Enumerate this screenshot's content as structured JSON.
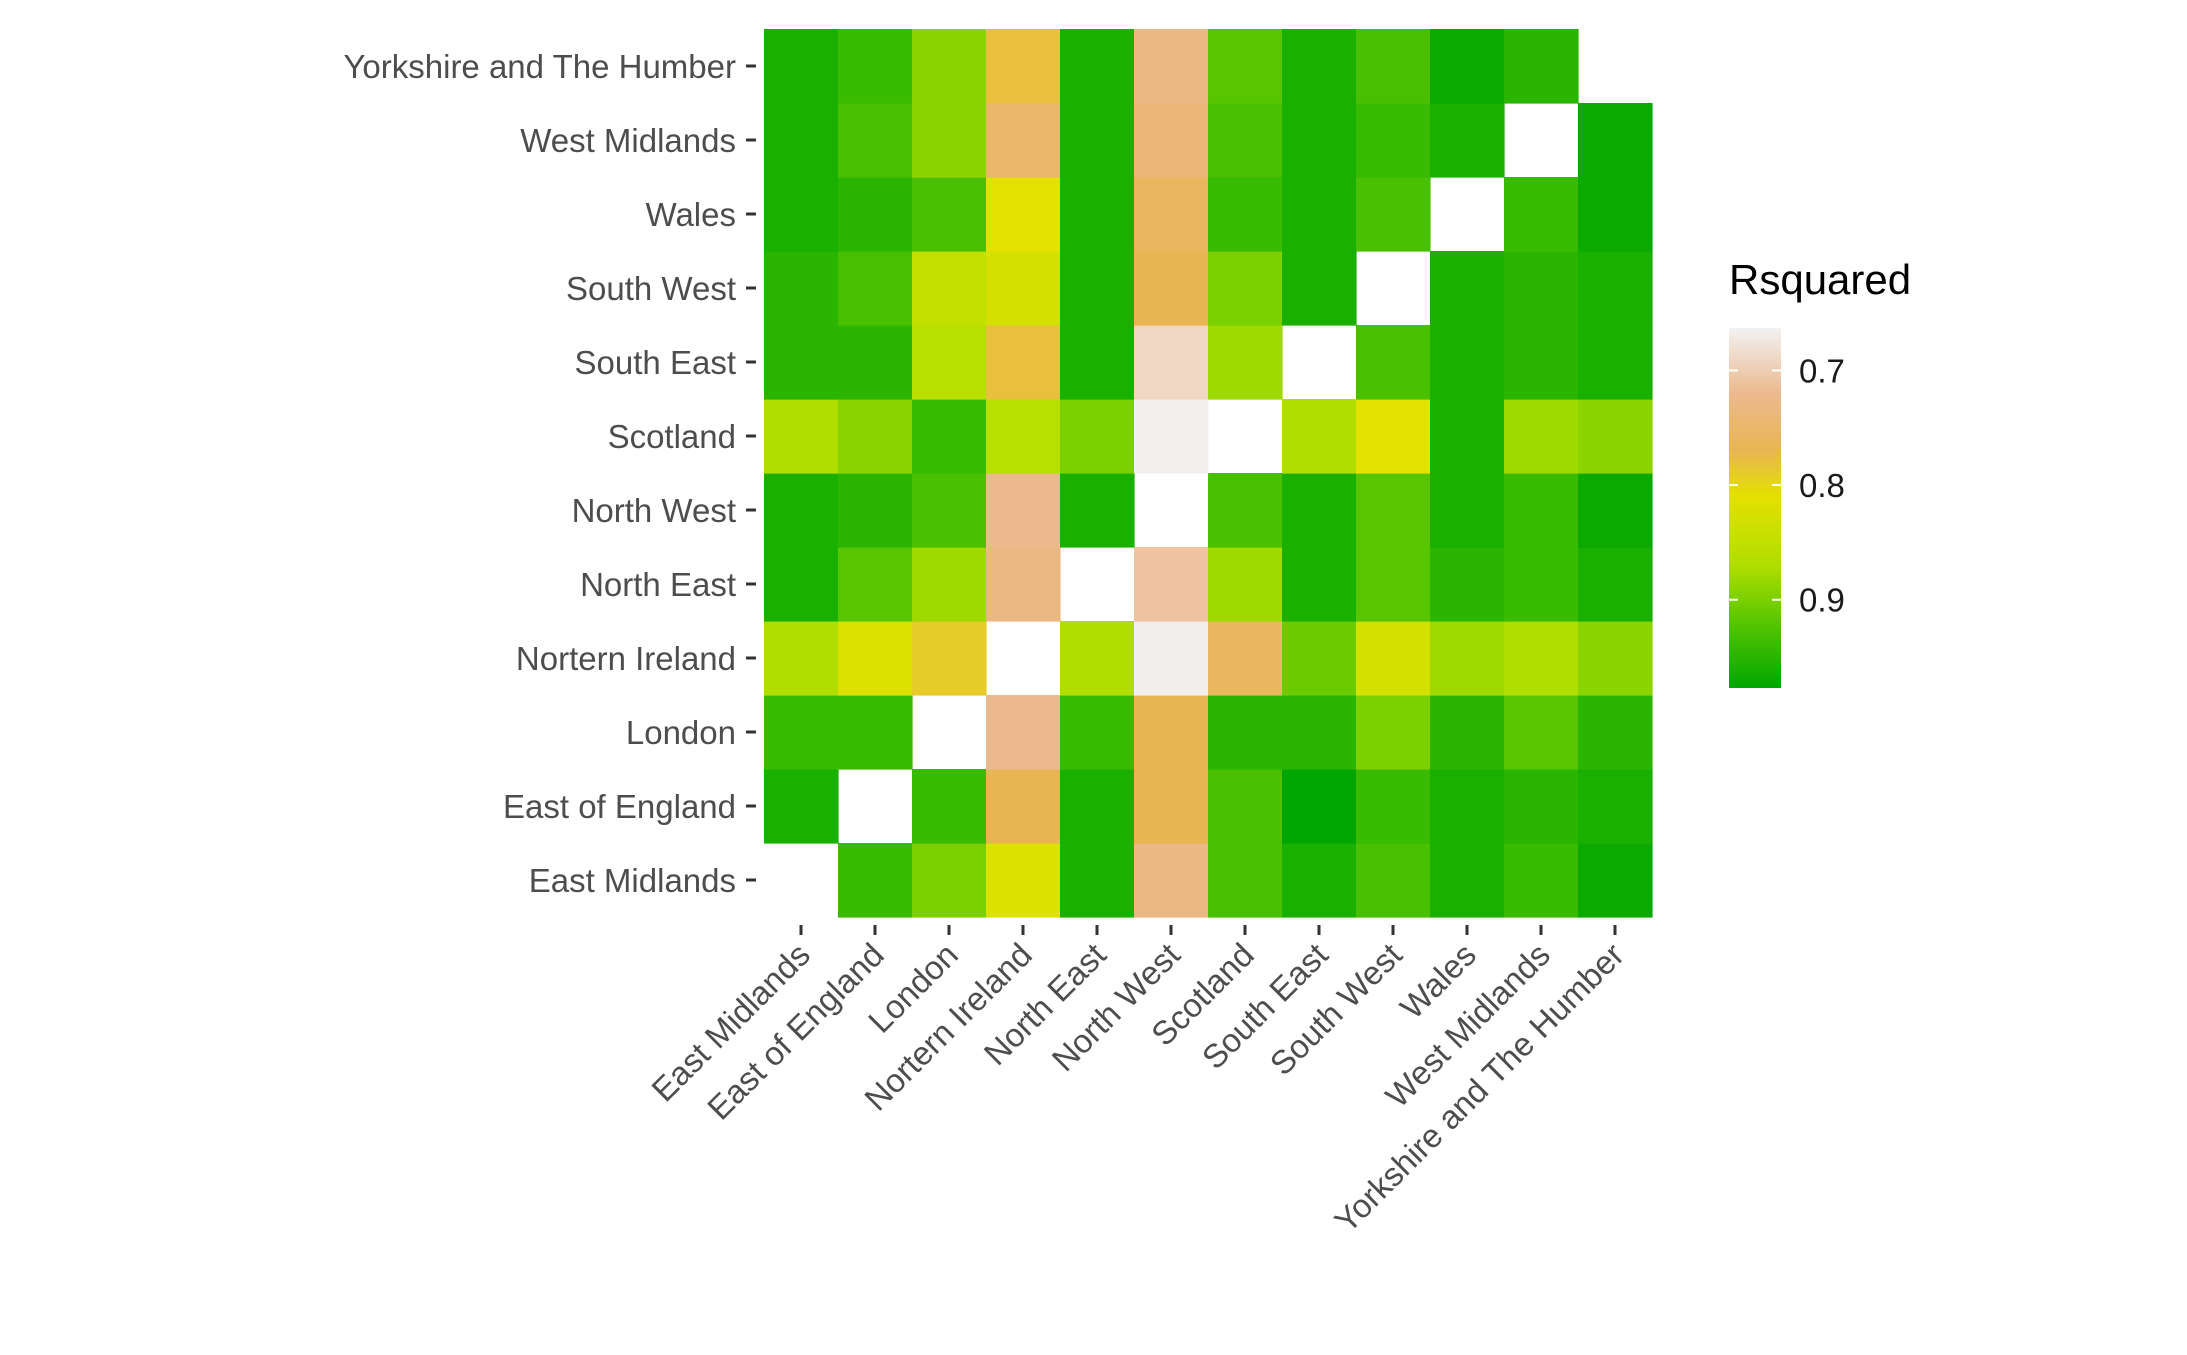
{
  "chart_data": {
    "type": "heatmap",
    "title": "",
    "xlabel": "",
    "ylabel": "",
    "legend": {
      "title": "Rsquared",
      "placement": "right",
      "range": [
        0.663,
        0.977
      ],
      "reversed": true,
      "breaks": [
        0.7,
        0.8,
        0.9
      ],
      "break_labels": [
        "0.7",
        "0.8",
        "0.9"
      ],
      "gradient_colors": [
        {
          "value": 0.663,
          "color": "#f2f2f2"
        },
        {
          "value": 0.72,
          "color": "#ecb98f"
        },
        {
          "value": 0.77,
          "color": "#e9b552"
        },
        {
          "value": 0.81,
          "color": "#e4e100"
        },
        {
          "value": 0.87,
          "color": "#b0de00"
        },
        {
          "value": 0.92,
          "color": "#57c600"
        },
        {
          "value": 0.977,
          "color": "#00a600"
        }
      ]
    },
    "x_categories": [
      "East Midlands",
      "East of England",
      "London",
      "Nortern Ireland",
      "North East",
      "North West",
      "Scotland",
      "South East",
      "South West",
      "Wales",
      "West Midlands",
      "Yorkshire and The Humber"
    ],
    "y_categories": [
      "East Midlands",
      "East of England",
      "London",
      "Nortern Ireland",
      "North East",
      "North West",
      "Scotland",
      "South East",
      "South West",
      "Wales",
      "West Midlands",
      "Yorkshire and The Humber"
    ],
    "values": [
      [
        null,
        0.94,
        0.9,
        0.82,
        0.96,
        0.73,
        0.93,
        0.96,
        0.93,
        0.96,
        0.94,
        0.97
      ],
      [
        0.96,
        null,
        0.94,
        0.77,
        0.96,
        0.77,
        0.93,
        0.977,
        0.94,
        0.96,
        0.95,
        0.96
      ],
      [
        0.94,
        0.94,
        null,
        0.72,
        0.94,
        0.77,
        0.95,
        0.95,
        0.9,
        0.95,
        0.92,
        0.95
      ],
      [
        0.87,
        0.82,
        0.79,
        null,
        0.87,
        0.667,
        0.76,
        0.91,
        0.83,
        0.88,
        0.87,
        0.89
      ],
      [
        0.96,
        0.92,
        0.88,
        0.73,
        null,
        0.71,
        0.88,
        0.96,
        0.92,
        0.95,
        0.94,
        0.96
      ],
      [
        0.96,
        0.95,
        0.93,
        0.72,
        0.96,
        null,
        0.93,
        0.96,
        0.92,
        0.96,
        0.94,
        0.97
      ],
      [
        0.87,
        0.89,
        0.94,
        0.86,
        0.9,
        0.665,
        null,
        0.87,
        0.81,
        0.96,
        0.88,
        0.89
      ],
      [
        0.95,
        0.95,
        0.86,
        0.78,
        0.96,
        0.69,
        0.88,
        null,
        0.93,
        0.96,
        0.95,
        0.96
      ],
      [
        0.95,
        0.93,
        0.85,
        0.83,
        0.96,
        0.77,
        0.9,
        0.96,
        null,
        0.96,
        0.95,
        0.96
      ],
      [
        0.96,
        0.95,
        0.93,
        0.81,
        0.96,
        0.76,
        0.94,
        0.96,
        0.93,
        null,
        0.94,
        0.97
      ],
      [
        0.96,
        0.93,
        0.89,
        0.75,
        0.96,
        0.74,
        0.93,
        0.96,
        0.94,
        0.96,
        null,
        0.97
      ],
      [
        0.96,
        0.94,
        0.89,
        0.78,
        0.96,
        0.73,
        0.92,
        0.96,
        0.93,
        0.97,
        0.95,
        null
      ]
    ],
    "grid": false
  }
}
